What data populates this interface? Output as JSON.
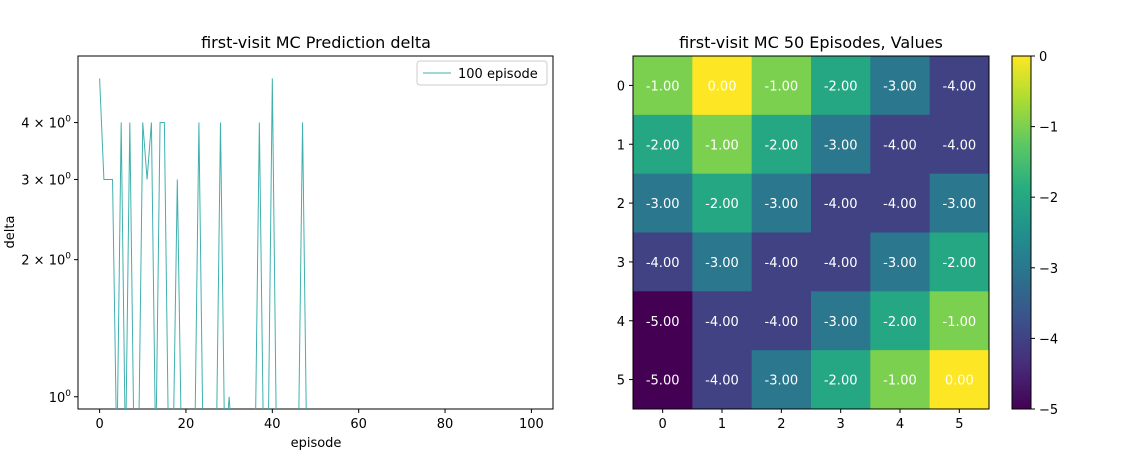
{
  "chart_data": [
    {
      "type": "line",
      "title": "first-visit MC Prediction delta",
      "xlabel": "episode",
      "ylabel": "delta",
      "yscale": "log",
      "xlim": [
        -5,
        105
      ],
      "ylim": [
        0.94,
        5.6
      ],
      "xticks": [
        0,
        20,
        40,
        60,
        80,
        100
      ],
      "xtick_labels": [
        "0",
        "20",
        "40",
        "60",
        "80",
        "100"
      ],
      "yticks": [
        1,
        2,
        3,
        4
      ],
      "ytick_labels": [
        "10^0",
        "2 × 10^0",
        "3 × 10^0",
        "4 × 10^0"
      ],
      "legend": {
        "placement": "upper-right",
        "entries": [
          "100 episode"
        ]
      },
      "color": "#40b0ae",
      "series": [
        {
          "name": "100 episode",
          "x": [
            0,
            1,
            2,
            3,
            4,
            5,
            6,
            7,
            8,
            9,
            10,
            11,
            12,
            13,
            14,
            15,
            16,
            17,
            18,
            19,
            20,
            21,
            22,
            23,
            24,
            25,
            26,
            27,
            28,
            29,
            30,
            31,
            32,
            33,
            34,
            35,
            36,
            37,
            38,
            39,
            40,
            41,
            42,
            43,
            44,
            45,
            46,
            47,
            48,
            49,
            50,
            51,
            52,
            53,
            54,
            55,
            56,
            57,
            58,
            59,
            60,
            61,
            62,
            63,
            64,
            65,
            66,
            67,
            68,
            69,
            70,
            71,
            72,
            73,
            74,
            75,
            76,
            77,
            78,
            79,
            80,
            81,
            82,
            83,
            84,
            85,
            86,
            87,
            88,
            89,
            90,
            91,
            92,
            93,
            94,
            95,
            96,
            97,
            98,
            99
          ],
          "y": [
            5,
            3,
            3,
            3,
            0,
            4,
            0,
            4,
            0,
            0,
            4,
            3,
            4,
            0,
            4,
            4,
            0,
            0,
            3,
            0,
            0,
            0,
            0,
            4,
            0,
            0,
            0,
            0,
            4,
            0,
            1,
            0,
            0,
            0,
            0,
            0,
            0,
            4,
            0,
            0,
            5,
            0,
            0,
            0,
            0,
            0,
            0,
            4,
            0,
            0,
            0,
            0,
            0,
            0,
            0,
            0,
            0,
            0,
            0,
            0,
            0,
            0,
            0,
            0,
            0,
            0,
            0,
            0,
            0,
            0,
            0,
            0,
            0,
            0,
            0,
            0,
            0,
            0,
            0,
            0,
            0,
            0,
            0,
            0,
            0,
            0,
            0,
            0,
            0,
            0,
            0,
            0,
            0,
            0,
            0,
            0,
            0,
            0,
            0,
            0
          ]
        }
      ]
    },
    {
      "type": "heatmap",
      "title": "first-visit MC 50 Episodes, Values",
      "colormap": "viridis",
      "xticks": [
        "0",
        "1",
        "2",
        "3",
        "4",
        "5"
      ],
      "yticks": [
        "0",
        "1",
        "2",
        "3",
        "4",
        "5"
      ],
      "vmin": -5,
      "vmax": 0,
      "colorbar_ticks": [
        "0",
        "−1",
        "−2",
        "−3",
        "−4",
        "−5"
      ],
      "values": [
        [
          -1,
          0,
          -1,
          -2,
          -3,
          -4
        ],
        [
          -2,
          -1,
          -2,
          -3,
          -4,
          -4
        ],
        [
          -3,
          -2,
          -3,
          -4,
          -4,
          -3
        ],
        [
          -4,
          -3,
          -4,
          -4,
          -3,
          -2
        ],
        [
          -5,
          -4,
          -4,
          -3,
          -2,
          -1
        ],
        [
          -5,
          -4,
          -3,
          -2,
          -1,
          0
        ]
      ],
      "labels": [
        [
          "-1.00",
          "0.00",
          "-1.00",
          "-2.00",
          "-3.00",
          "-4.00"
        ],
        [
          "-2.00",
          "-1.00",
          "-2.00",
          "-3.00",
          "-4.00",
          "-4.00"
        ],
        [
          "-3.00",
          "-2.00",
          "-3.00",
          "-4.00",
          "-4.00",
          "-3.00"
        ],
        [
          "-4.00",
          "-3.00",
          "-4.00",
          "-4.00",
          "-3.00",
          "-2.00"
        ],
        [
          "-5.00",
          "-4.00",
          "-4.00",
          "-3.00",
          "-2.00",
          "-1.00"
        ],
        [
          "-5.00",
          "-4.00",
          "-3.00",
          "-2.00",
          "-1.00",
          "0.00"
        ]
      ]
    }
  ]
}
